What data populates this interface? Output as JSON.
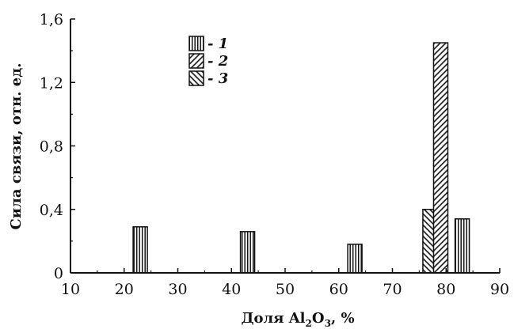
{
  "chart_data": {
    "type": "bar",
    "title": "",
    "xlabel": {
      "pre": "Доля Al",
      "sub1": "2",
      "mid": "O",
      "sub2": "3",
      "post": ", %"
    },
    "ylabel": "Сила связи, отн. ед.",
    "xlim": [
      10,
      90
    ],
    "ylim": [
      0,
      1.6
    ],
    "x_ticks": [
      10,
      20,
      30,
      40,
      50,
      60,
      70,
      80,
      90
    ],
    "x_tick_labels": [
      "10",
      "20",
      "30",
      "40",
      "50",
      "60",
      "70",
      "80",
      "90"
    ],
    "y_ticks": [
      0,
      0.4,
      0.8,
      1.2,
      1.6
    ],
    "y_tick_labels": [
      "0",
      "0,4",
      "0,8",
      "1,2",
      "1,6"
    ],
    "grid": false,
    "legend_position": "top-center",
    "series": [
      {
        "name": "- 1",
        "pattern": "vertical-lines",
        "bars": [
          {
            "x": 23,
            "y": 0.29
          },
          {
            "x": 43,
            "y": 0.26
          },
          {
            "x": 63,
            "y": 0.18
          },
          {
            "x": 83,
            "y": 0.34
          }
        ]
      },
      {
        "name": "- 2",
        "pattern": "forward-diagonal",
        "bars": [
          {
            "x": 79,
            "y": 1.45
          }
        ]
      },
      {
        "name": "- 3",
        "pattern": "back-diagonal",
        "bars": [
          {
            "x": 77,
            "y": 0.4
          }
        ]
      }
    ]
  }
}
